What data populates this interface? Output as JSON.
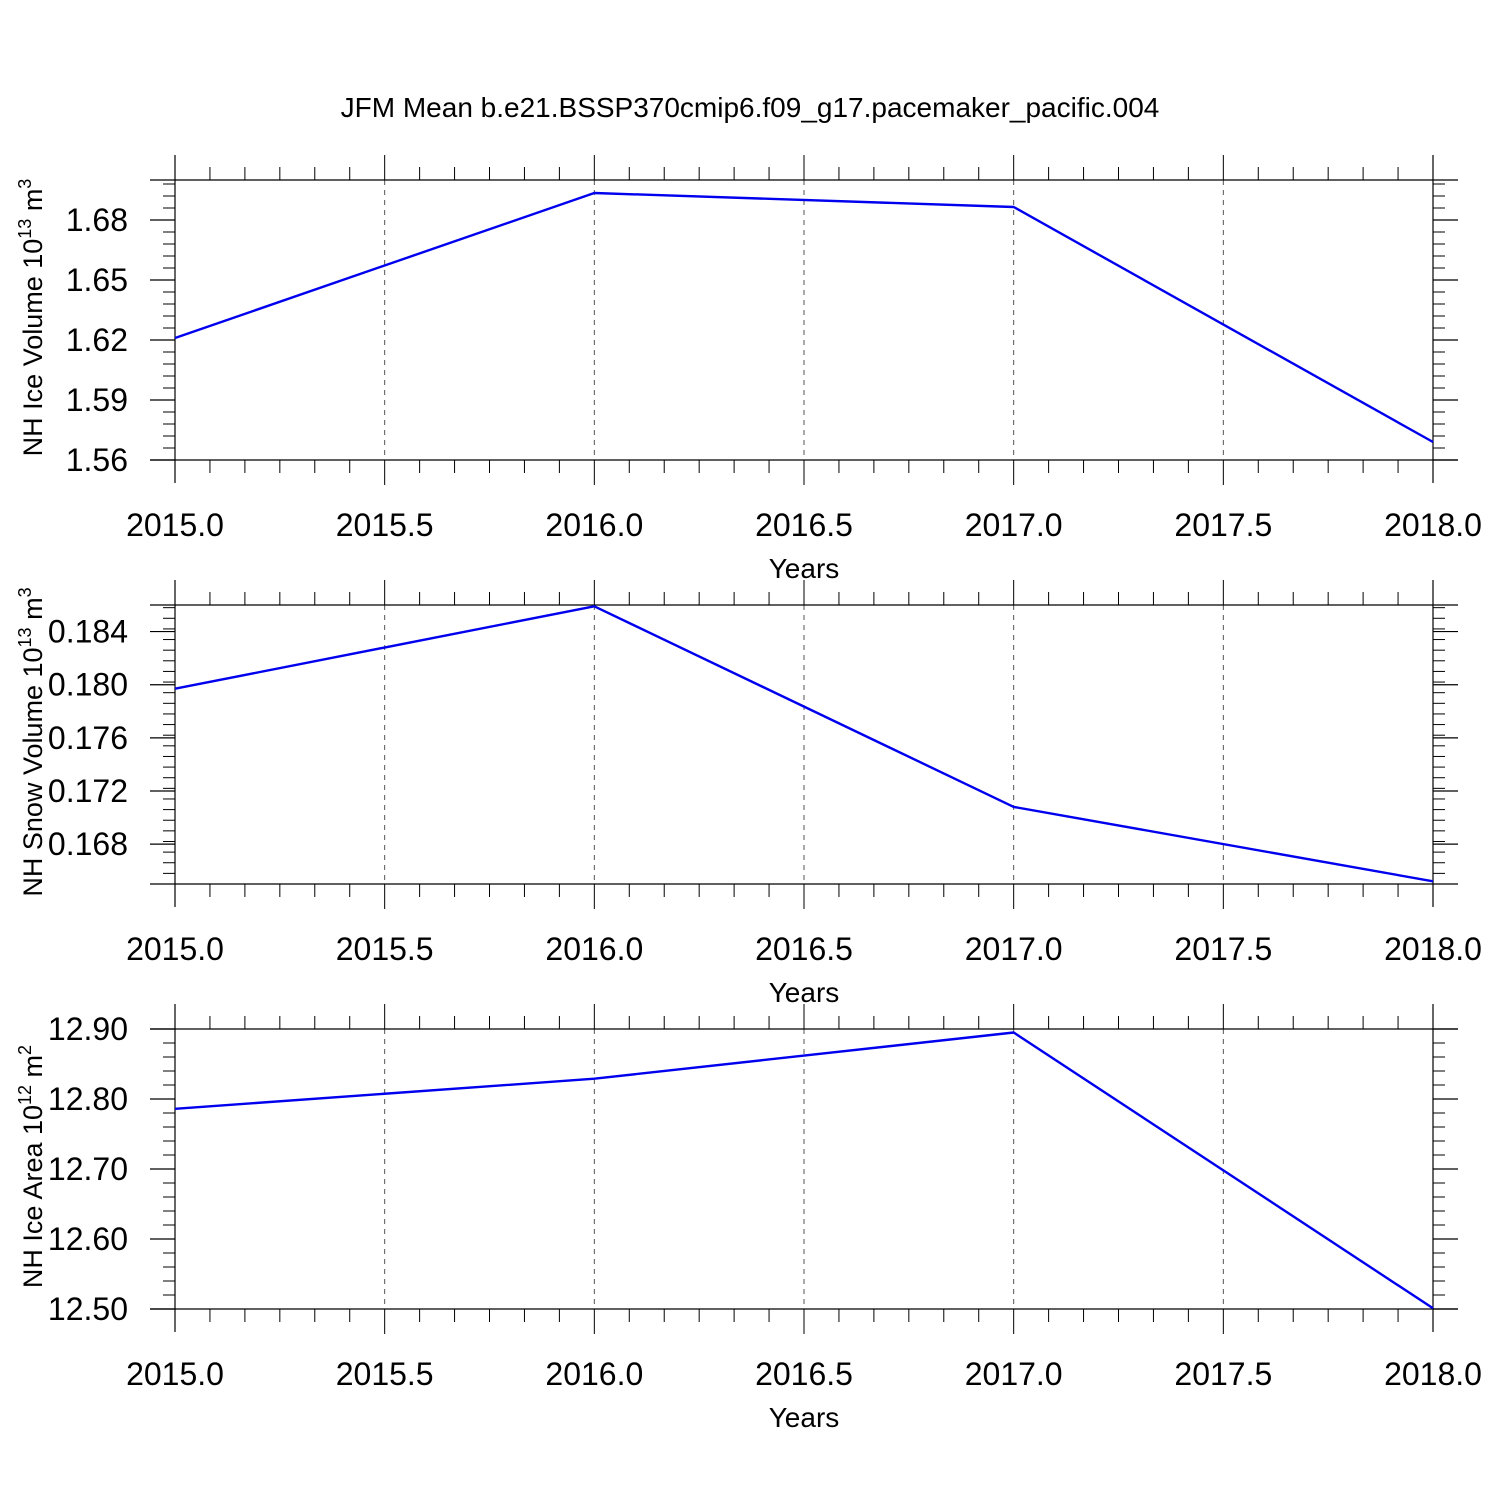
{
  "title": "JFM Mean b.e21.BSSP370cmip6.f09_g17.pacemaker_pacific.004",
  "line_color": "#0000ee",
  "chart_data": [
    {
      "type": "line",
      "x": [
        2015.0,
        2016.0,
        2017.0,
        2018.0
      ],
      "values": [
        1.621,
        1.6935,
        1.6865,
        1.569
      ],
      "xlabel": "Years",
      "ylabel": {
        "main": "NH Ice Volume 10",
        "exp": "13",
        "unit": " m",
        "unit_exp": "3"
      },
      "xlim": [
        2015.0,
        2018.0
      ],
      "ylim": [
        1.56,
        1.7
      ],
      "yticks": [
        1.56,
        1.59,
        1.62,
        1.65,
        1.68
      ],
      "ytick_labels": [
        "1.56",
        "1.59",
        "1.62",
        "1.65",
        "1.68"
      ],
      "yminor": 0.006,
      "xticks": [
        2015.0,
        2015.5,
        2016.0,
        2016.5,
        2017.0,
        2017.5,
        2018.0
      ],
      "xtick_labels": [
        "2015.0",
        "2015.5",
        "2016.0",
        "2016.5",
        "2017.0",
        "2017.5",
        "2018.0"
      ],
      "grid": "vertical-dashed"
    },
    {
      "type": "line",
      "x": [
        2015.0,
        2016.0,
        2017.0,
        2018.0
      ],
      "values": [
        0.1797,
        0.1859,
        0.1708,
        0.1652
      ],
      "xlabel": "Years",
      "ylabel": {
        "main": "NH Snow Volume 10",
        "exp": "13",
        "unit": " m",
        "unit_exp": "3"
      },
      "xlim": [
        2015.0,
        2018.0
      ],
      "ylim": [
        0.165,
        0.186
      ],
      "yticks": [
        0.168,
        0.172,
        0.176,
        0.18,
        0.184
      ],
      "ytick_labels": [
        "0.168",
        "0.172",
        "0.176",
        "0.180",
        "0.184"
      ],
      "yminor": 0.0008,
      "xticks": [
        2015.0,
        2015.5,
        2016.0,
        2016.5,
        2017.0,
        2017.5,
        2018.0
      ],
      "xtick_labels": [
        "2015.0",
        "2015.5",
        "2016.0",
        "2016.5",
        "2017.0",
        "2017.5",
        "2018.0"
      ],
      "grid": "vertical-dashed"
    },
    {
      "type": "line",
      "x": [
        2015.0,
        2016.0,
        2017.0,
        2018.0
      ],
      "values": [
        12.786,
        12.829,
        12.895,
        12.501
      ],
      "xlabel": "Years",
      "ylabel": {
        "main": "NH Ice Area 10",
        "exp": "12",
        "unit": " m",
        "unit_exp": "2"
      },
      "xlim": [
        2015.0,
        2018.0
      ],
      "ylim": [
        12.5,
        12.9
      ],
      "yticks": [
        12.5,
        12.6,
        12.7,
        12.8,
        12.9
      ],
      "ytick_labels": [
        "12.50",
        "12.60",
        "12.70",
        "12.80",
        "12.90"
      ],
      "yminor": 0.02,
      "xticks": [
        2015.0,
        2015.5,
        2016.0,
        2016.5,
        2017.0,
        2017.5,
        2018.0
      ],
      "xtick_labels": [
        "2015.0",
        "2015.5",
        "2016.0",
        "2016.5",
        "2017.0",
        "2017.5",
        "2018.0"
      ],
      "grid": "vertical-dashed"
    }
  ]
}
